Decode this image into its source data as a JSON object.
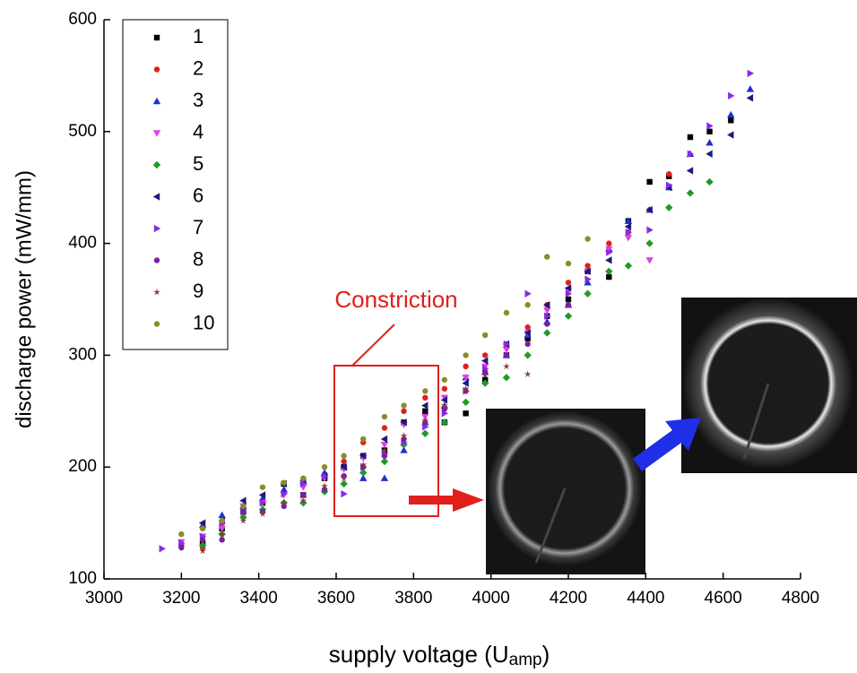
{
  "chart_data": {
    "type": "scatter",
    "xlabel": "supply voltage (U",
    "xlabel_sub": "amp",
    "xlabel_end": ")",
    "ylabel": "discharge power (mW/mm)",
    "annotation": "Constriction",
    "xlim": [
      3000,
      4800
    ],
    "ylim": [
      100,
      600
    ],
    "xticks": [
      3000,
      3200,
      3400,
      3600,
      3800,
      4000,
      4200,
      4400,
      4600,
      4800
    ],
    "yticks": [
      100,
      200,
      300,
      400,
      500,
      600
    ],
    "legend": "upper-left",
    "series": [
      {
        "name": "1",
        "color": "#000000",
        "marker": "square",
        "x": [
          3255,
          3305,
          3360,
          3410,
          3465,
          3515,
          3570,
          3620,
          3670,
          3725,
          3775,
          3830,
          3880,
          3935,
          3985,
          4040,
          4095,
          4145,
          4200,
          4250,
          4305,
          4355,
          4410,
          4460,
          4515,
          4565,
          4620
        ],
        "values": [
          132,
          145,
          160,
          168,
          185,
          175,
          190,
          200,
          210,
          215,
          240,
          250,
          240,
          248,
          278,
          300,
          315,
          335,
          350,
          375,
          370,
          420,
          455,
          460,
          495,
          500,
          510
        ]
      },
      {
        "name": "2",
        "color": "#e0201b",
        "marker": "circle",
        "x": [
          3200,
          3255,
          3305,
          3360,
          3410,
          3465,
          3515,
          3570,
          3620,
          3670,
          3725,
          3775,
          3830,
          3880,
          3935,
          3985,
          4040,
          4095,
          4145,
          4200,
          4250,
          4305,
          4355,
          4410,
          4460
        ],
        "values": [
          130,
          128,
          150,
          162,
          170,
          178,
          185,
          192,
          205,
          222,
          235,
          250,
          262,
          270,
          290,
          300,
          310,
          325,
          345,
          365,
          380,
          400,
          410,
          430,
          462
        ]
      },
      {
        "name": "3",
        "color": "#1f2fd0",
        "marker": "triangle-up",
        "x": [
          3255,
          3305,
          3360,
          3410,
          3465,
          3515,
          3570,
          3620,
          3670,
          3725,
          3775,
          3830,
          3880,
          3935,
          3985,
          4040,
          4095,
          4145,
          4200,
          4250,
          4305,
          4355,
          4410,
          4460,
          4515,
          4565,
          4620,
          4670
        ],
        "values": [
          148,
          157,
          165,
          172,
          180,
          188,
          195,
          200,
          190,
          190,
          215,
          240,
          255,
          280,
          285,
          300,
          318,
          330,
          345,
          365,
          395,
          420,
          430,
          450,
          480,
          490,
          515,
          538
        ]
      },
      {
        "name": "4",
        "color": "#e040e0",
        "marker": "triangle-down",
        "x": [
          3200,
          3255,
          3305,
          3360,
          3410,
          3465,
          3515,
          3570,
          3620,
          3670,
          3725,
          3775,
          3830,
          3880,
          3935,
          3985,
          4040,
          4095,
          4145,
          4200,
          4250,
          4305,
          4355,
          4410
        ],
        "values": [
          133,
          138,
          145,
          165,
          168,
          175,
          182,
          190,
          198,
          208,
          220,
          238,
          245,
          262,
          280,
          290,
          305,
          320,
          340,
          358,
          375,
          395,
          405,
          385
        ]
      },
      {
        "name": "5",
        "color": "#1f9a2a",
        "marker": "diamond",
        "x": [
          3255,
          3305,
          3360,
          3410,
          3465,
          3515,
          3570,
          3620,
          3670,
          3725,
          3775,
          3830,
          3880,
          3935,
          3985,
          4040,
          4095,
          4145,
          4200,
          4250,
          4305,
          4355,
          4410,
          4460,
          4515,
          4565
        ],
        "values": [
          130,
          140,
          155,
          162,
          168,
          168,
          178,
          185,
          195,
          205,
          220,
          230,
          240,
          258,
          275,
          280,
          300,
          320,
          335,
          355,
          375,
          380,
          400,
          432,
          445,
          455
        ]
      },
      {
        "name": "6",
        "color": "#1a1a80",
        "marker": "triangle-left",
        "x": [
          3255,
          3305,
          3360,
          3410,
          3465,
          3515,
          3570,
          3620,
          3670,
          3725,
          3775,
          3830,
          3880,
          3935,
          3985,
          4040,
          4095,
          4145,
          4200,
          4250,
          4305,
          4355,
          4410,
          4460,
          4515,
          4565,
          4620,
          4670
        ],
        "values": [
          150,
          152,
          170,
          175,
          185,
          188,
          192,
          200,
          210,
          225,
          240,
          255,
          260,
          275,
          295,
          310,
          320,
          345,
          360,
          375,
          385,
          415,
          430,
          450,
          465,
          480,
          497,
          530
        ]
      },
      {
        "name": "7",
        "color": "#8a2be2",
        "marker": "triangle-right",
        "x": [
          3150,
          3200,
          3255,
          3305,
          3360,
          3410,
          3465,
          3515,
          3570,
          3620,
          3670,
          3725,
          3775,
          3830,
          3880,
          3935,
          3985,
          4040,
          4095,
          4145,
          4200,
          4250,
          4305,
          4355,
          4410,
          4460,
          4515,
          4565,
          4620,
          4670
        ],
        "values": [
          127,
          132,
          138,
          150,
          160,
          168,
          176,
          185,
          192,
          176,
          200,
          212,
          222,
          236,
          248,
          268,
          288,
          310,
          355,
          335,
          355,
          368,
          392,
          410,
          412,
          452,
          480,
          505,
          532,
          552
        ]
      },
      {
        "name": "8",
        "color": "#7b1fa2",
        "marker": "circle",
        "x": [
          3200,
          3255,
          3305,
          3360,
          3410,
          3465,
          3515,
          3570,
          3620,
          3670,
          3725,
          3775,
          3830,
          3880,
          3935,
          3985,
          4040,
          4095,
          4145,
          4200
        ],
        "values": [
          128,
          135,
          135,
          160,
          160,
          165,
          175,
          180,
          192,
          200,
          210,
          225,
          240,
          252,
          268,
          285,
          300,
          310,
          328,
          345
        ]
      },
      {
        "name": "9",
        "color": "#8b3a3a",
        "marker": "star",
        "x": [
          3255,
          3305,
          3360,
          3410,
          3465,
          3515,
          3570,
          3620,
          3670,
          3725,
          3775,
          3830,
          3880,
          3935,
          3985,
          4040,
          4095
        ],
        "values": [
          125,
          140,
          152,
          158,
          168,
          170,
          183,
          190,
          202,
          215,
          228,
          242,
          255,
          270,
          282,
          290,
          283
        ]
      },
      {
        "name": "10",
        "color": "#8b8b2a",
        "marker": "circle",
        "x": [
          3200,
          3255,
          3305,
          3360,
          3410,
          3465,
          3515,
          3570,
          3620,
          3670,
          3725,
          3775,
          3830,
          3880,
          3935,
          3985,
          4040,
          4095,
          4145,
          4200,
          4250
        ],
        "values": [
          140,
          145,
          152,
          165,
          182,
          186,
          190,
          200,
          210,
          225,
          245,
          255,
          268,
          278,
          300,
          318,
          338,
          345,
          388,
          382,
          404
        ]
      }
    ]
  }
}
